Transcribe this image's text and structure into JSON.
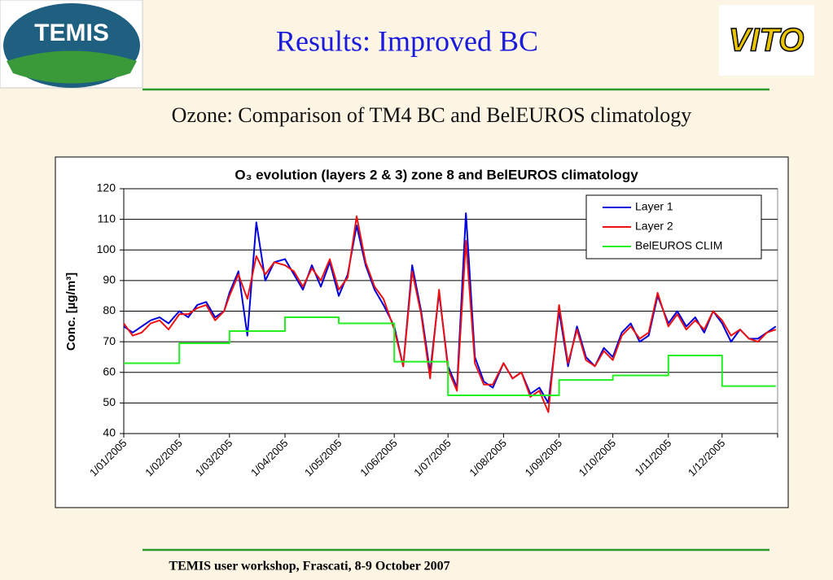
{
  "slide": {
    "title": "Results: Improved BC",
    "subtitle": "Ozone: Comparison of TM4 BC and BelEUROS climatology",
    "footer": "TEMIS user workshop, Frascati, 8-9 October 2007",
    "logo_left": "TEMIS",
    "logo_right": "VITO"
  },
  "chart_data": {
    "type": "line",
    "title": "O₃ evolution (layers 2 & 3) zone 8 and BelEUROS climatology",
    "y_label": "Conc. [µg/m³]",
    "x": [
      "1/01/2005",
      "6/01/2005",
      "11/01/2005",
      "16/01/2005",
      "21/01/2005",
      "26/01/2005",
      "1/02/2005",
      "6/02/2005",
      "11/02/2005",
      "16/02/2005",
      "21/02/2005",
      "26/02/2005",
      "1/03/2005",
      "6/03/2005",
      "11/03/2005",
      "16/03/2005",
      "21/03/2005",
      "26/03/2005",
      "1/04/2005",
      "6/04/2005",
      "11/04/2005",
      "16/04/2005",
      "21/04/2005",
      "26/04/2005",
      "1/05/2005",
      "6/05/2005",
      "11/05/2005",
      "16/05/2005",
      "21/05/2005",
      "26/05/2005",
      "1/06/2005",
      "6/06/2005",
      "11/06/2005",
      "16/06/2005",
      "21/06/2005",
      "26/06/2005",
      "1/07/2005",
      "6/07/2005",
      "11/07/2005",
      "16/07/2005",
      "21/07/2005",
      "26/07/2005",
      "1/08/2005",
      "6/08/2005",
      "11/08/2005",
      "16/08/2005",
      "21/08/2005",
      "26/08/2005",
      "1/09/2005",
      "6/09/2005",
      "11/09/2005",
      "16/09/2005",
      "21/09/2005",
      "26/09/2005",
      "1/10/2005",
      "6/10/2005",
      "11/10/2005",
      "16/10/2005",
      "21/10/2005",
      "26/10/2005",
      "1/11/2005",
      "6/11/2005",
      "11/11/2005",
      "16/11/2005",
      "21/11/2005",
      "26/11/2005",
      "1/12/2005",
      "6/12/2005",
      "11/12/2005",
      "16/12/2005",
      "21/12/2005",
      "26/12/2005",
      "31/12/2005"
    ],
    "series": [
      {
        "name": "Layer 1",
        "color": "#0000dd",
        "values": [
          75,
          73,
          75,
          77,
          78,
          76,
          80,
          78,
          82,
          83,
          78,
          80,
          86,
          93,
          72,
          109,
          90,
          96,
          97,
          92,
          87,
          95,
          88,
          96,
          85,
          92,
          108,
          95,
          87,
          82,
          75,
          62,
          95,
          80,
          60,
          86,
          62,
          55,
          112,
          65,
          57,
          55,
          63,
          58,
          60,
          53,
          55,
          50,
          80,
          62,
          75,
          65,
          62,
          68,
          65,
          73,
          76,
          70,
          72,
          85,
          76,
          80,
          75,
          78,
          73,
          80,
          76,
          70,
          74,
          71,
          71,
          73,
          75
        ]
      },
      {
        "name": "Layer 2",
        "color": "#ee1111",
        "values": [
          76,
          72,
          73,
          76,
          77,
          74,
          79,
          79,
          81,
          82,
          77,
          80,
          85,
          92,
          84,
          98,
          92,
          96,
          95,
          93,
          88,
          94,
          90,
          97,
          87,
          91,
          111,
          96,
          88,
          84,
          74,
          62,
          93,
          79,
          58,
          87,
          61,
          54,
          103,
          63,
          56,
          56,
          63,
          58,
          60,
          52,
          54,
          47,
          82,
          63,
          74,
          64,
          62,
          67,
          64,
          72,
          75,
          71,
          73,
          86,
          75,
          79,
          74,
          77,
          74,
          80,
          77,
          72,
          74,
          71,
          70,
          73,
          74
        ]
      },
      {
        "name": "BelEUROS CLIM",
        "color": "#22ee22",
        "x": [
          "1/01/2005",
          "1/02/2005",
          "1/02/2005",
          "1/03/2005",
          "1/03/2005",
          "1/04/2005",
          "1/04/2005",
          "1/05/2005",
          "1/05/2005",
          "1/06/2005",
          "1/06/2005",
          "1/07/2005",
          "1/07/2005",
          "1/09/2005",
          "1/09/2005",
          "1/10/2005",
          "1/10/2005",
          "1/11/2005",
          "1/11/2005",
          "1/12/2005",
          "1/12/2005",
          "31/12/2005"
        ],
        "values": [
          63,
          63,
          69.5,
          69.5,
          73.5,
          73.5,
          78,
          78,
          76,
          76,
          63.5,
          63.5,
          52.5,
          52.5,
          57.5,
          57.5,
          59,
          59,
          65.5,
          65.5,
          55.5,
          55.5
        ]
      }
    ],
    "xlim": [
      "1/01/2005",
      "31/12/2005"
    ],
    "xticks": [
      "1/01/2005",
      "1/02/2005",
      "1/03/2005",
      "1/04/2005",
      "1/05/2005",
      "1/06/2005",
      "1/07/2005",
      "1/08/2005",
      "1/09/2005",
      "1/10/2005",
      "1/11/2005",
      "1/12/2005"
    ],
    "ylim": [
      40,
      120
    ],
    "yticks": [
      40,
      50,
      60,
      70,
      80,
      90,
      100,
      110,
      120
    ],
    "grid": true,
    "legend": "upper right"
  }
}
